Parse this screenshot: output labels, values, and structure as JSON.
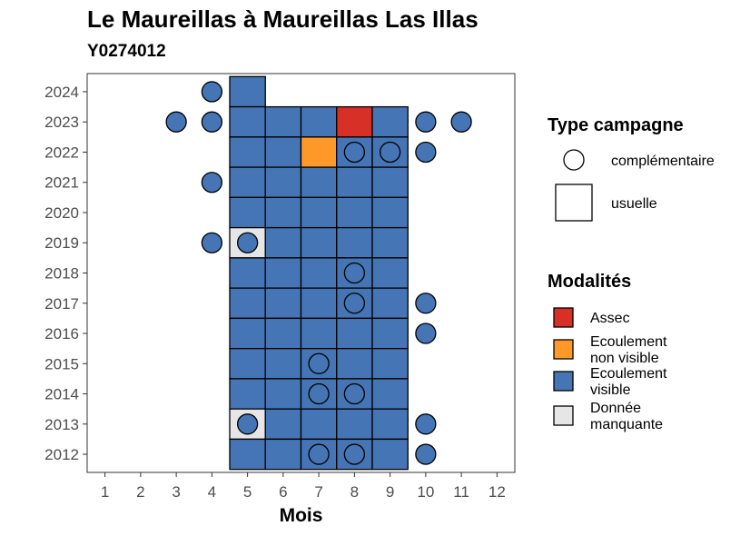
{
  "chart_data": {
    "type": "heatmap",
    "title": "Le Maureillas à Maureillas Las Illas",
    "subtitle": "Y0274012",
    "xlabel": "Mois",
    "ylabel": "",
    "x_ticks": [
      1,
      2,
      3,
      4,
      5,
      6,
      7,
      8,
      9,
      10,
      11,
      12
    ],
    "y_ticks": [
      2012,
      2013,
      2014,
      2015,
      2016,
      2017,
      2018,
      2019,
      2020,
      2021,
      2022,
      2023,
      2024
    ],
    "xlim": [
      0.5,
      12.5
    ],
    "ylim": [
      2011.4,
      2024.6
    ],
    "grid": false,
    "legend_position": "right",
    "legend_type": {
      "title": "Type campagne",
      "entries": [
        {
          "label": "complémentaire",
          "shape": "circle"
        },
        {
          "label": "usuelle",
          "shape": "square"
        }
      ]
    },
    "legend_modalites": {
      "title": "Modalités",
      "entries": [
        {
          "key": "assec",
          "label_lines": [
            "Assec"
          ],
          "color": "#d73027"
        },
        {
          "key": "ecoulement_non_visible",
          "label_lines": [
            "Ecoulement",
            "non visible"
          ],
          "color": "#fe9929"
        },
        {
          "key": "ecoulement_visible",
          "label_lines": [
            "Ecoulement",
            "visible"
          ],
          "color": "#4575b4"
        },
        {
          "key": "donnee_manquante",
          "label_lines": [
            "Donnée",
            "manquante"
          ],
          "color": "#e6e6e6"
        }
      ]
    },
    "squares": [
      {
        "year": 2024,
        "month": 5,
        "status": "ecoulement_visible"
      },
      {
        "year": 2023,
        "month": 5,
        "status": "ecoulement_visible"
      },
      {
        "year": 2023,
        "month": 6,
        "status": "ecoulement_visible"
      },
      {
        "year": 2023,
        "month": 7,
        "status": "ecoulement_visible"
      },
      {
        "year": 2023,
        "month": 8,
        "status": "assec"
      },
      {
        "year": 2023,
        "month": 9,
        "status": "ecoulement_visible"
      },
      {
        "year": 2022,
        "month": 5,
        "status": "ecoulement_visible"
      },
      {
        "year": 2022,
        "month": 6,
        "status": "ecoulement_visible"
      },
      {
        "year": 2022,
        "month": 7,
        "status": "ecoulement_non_visible"
      },
      {
        "year": 2022,
        "month": 8,
        "status": "ecoulement_visible"
      },
      {
        "year": 2022,
        "month": 9,
        "status": "ecoulement_visible"
      },
      {
        "year": 2021,
        "month": 5,
        "status": "ecoulement_visible"
      },
      {
        "year": 2021,
        "month": 6,
        "status": "ecoulement_visible"
      },
      {
        "year": 2021,
        "month": 7,
        "status": "ecoulement_visible"
      },
      {
        "year": 2021,
        "month": 8,
        "status": "ecoulement_visible"
      },
      {
        "year": 2021,
        "month": 9,
        "status": "ecoulement_visible"
      },
      {
        "year": 2020,
        "month": 5,
        "status": "ecoulement_visible"
      },
      {
        "year": 2020,
        "month": 6,
        "status": "ecoulement_visible"
      },
      {
        "year": 2020,
        "month": 7,
        "status": "ecoulement_visible"
      },
      {
        "year": 2020,
        "month": 8,
        "status": "ecoulement_visible"
      },
      {
        "year": 2020,
        "month": 9,
        "status": "ecoulement_visible"
      },
      {
        "year": 2019,
        "month": 5,
        "status": "donnee_manquante"
      },
      {
        "year": 2019,
        "month": 6,
        "status": "ecoulement_visible"
      },
      {
        "year": 2019,
        "month": 7,
        "status": "ecoulement_visible"
      },
      {
        "year": 2019,
        "month": 8,
        "status": "ecoulement_visible"
      },
      {
        "year": 2019,
        "month": 9,
        "status": "ecoulement_visible"
      },
      {
        "year": 2018,
        "month": 5,
        "status": "ecoulement_visible"
      },
      {
        "year": 2018,
        "month": 6,
        "status": "ecoulement_visible"
      },
      {
        "year": 2018,
        "month": 7,
        "status": "ecoulement_visible"
      },
      {
        "year": 2018,
        "month": 8,
        "status": "ecoulement_visible"
      },
      {
        "year": 2018,
        "month": 9,
        "status": "ecoulement_visible"
      },
      {
        "year": 2017,
        "month": 5,
        "status": "ecoulement_visible"
      },
      {
        "year": 2017,
        "month": 6,
        "status": "ecoulement_visible"
      },
      {
        "year": 2017,
        "month": 7,
        "status": "ecoulement_visible"
      },
      {
        "year": 2017,
        "month": 8,
        "status": "ecoulement_visible"
      },
      {
        "year": 2017,
        "month": 9,
        "status": "ecoulement_visible"
      },
      {
        "year": 2016,
        "month": 5,
        "status": "ecoulement_visible"
      },
      {
        "year": 2016,
        "month": 6,
        "status": "ecoulement_visible"
      },
      {
        "year": 2016,
        "month": 7,
        "status": "ecoulement_visible"
      },
      {
        "year": 2016,
        "month": 8,
        "status": "ecoulement_visible"
      },
      {
        "year": 2016,
        "month": 9,
        "status": "ecoulement_visible"
      },
      {
        "year": 2015,
        "month": 5,
        "status": "ecoulement_visible"
      },
      {
        "year": 2015,
        "month": 6,
        "status": "ecoulement_visible"
      },
      {
        "year": 2015,
        "month": 7,
        "status": "ecoulement_visible"
      },
      {
        "year": 2015,
        "month": 8,
        "status": "ecoulement_visible"
      },
      {
        "year": 2015,
        "month": 9,
        "status": "ecoulement_visible"
      },
      {
        "year": 2014,
        "month": 5,
        "status": "ecoulement_visible"
      },
      {
        "year": 2014,
        "month": 6,
        "status": "ecoulement_visible"
      },
      {
        "year": 2014,
        "month": 7,
        "status": "ecoulement_visible"
      },
      {
        "year": 2014,
        "month": 8,
        "status": "ecoulement_visible"
      },
      {
        "year": 2014,
        "month": 9,
        "status": "ecoulement_visible"
      },
      {
        "year": 2013,
        "month": 5,
        "status": "donnee_manquante"
      },
      {
        "year": 2013,
        "month": 6,
        "status": "ecoulement_visible"
      },
      {
        "year": 2013,
        "month": 7,
        "status": "ecoulement_visible"
      },
      {
        "year": 2013,
        "month": 8,
        "status": "ecoulement_visible"
      },
      {
        "year": 2013,
        "month": 9,
        "status": "ecoulement_visible"
      },
      {
        "year": 2012,
        "month": 5,
        "status": "ecoulement_visible"
      },
      {
        "year": 2012,
        "month": 6,
        "status": "ecoulement_visible"
      },
      {
        "year": 2012,
        "month": 7,
        "status": "ecoulement_visible"
      },
      {
        "year": 2012,
        "month": 8,
        "status": "ecoulement_visible"
      },
      {
        "year": 2012,
        "month": 9,
        "status": "ecoulement_visible"
      }
    ],
    "circles": [
      {
        "year": 2024,
        "month": 4,
        "status": "ecoulement_visible"
      },
      {
        "year": 2023,
        "month": 3,
        "status": "ecoulement_visible"
      },
      {
        "year": 2023,
        "month": 4,
        "status": "ecoulement_visible"
      },
      {
        "year": 2023,
        "month": 10,
        "status": "ecoulement_visible"
      },
      {
        "year": 2023,
        "month": 11,
        "status": "ecoulement_visible"
      },
      {
        "year": 2022,
        "month": 8,
        "status": "ecoulement_visible"
      },
      {
        "year": 2022,
        "month": 9,
        "status": "ecoulement_visible"
      },
      {
        "year": 2022,
        "month": 10,
        "status": "ecoulement_visible"
      },
      {
        "year": 2021,
        "month": 4,
        "status": "ecoulement_visible"
      },
      {
        "year": 2019,
        "month": 4,
        "status": "ecoulement_visible"
      },
      {
        "year": 2019,
        "month": 5,
        "status": "ecoulement_visible"
      },
      {
        "year": 2018,
        "month": 8,
        "status": "ecoulement_visible"
      },
      {
        "year": 2017,
        "month": 8,
        "status": "ecoulement_visible"
      },
      {
        "year": 2017,
        "month": 10,
        "status": "ecoulement_visible"
      },
      {
        "year": 2016,
        "month": 10,
        "status": "ecoulement_visible"
      },
      {
        "year": 2015,
        "month": 7,
        "status": "ecoulement_visible"
      },
      {
        "year": 2014,
        "month": 7,
        "status": "ecoulement_visible"
      },
      {
        "year": 2014,
        "month": 8,
        "status": "ecoulement_visible"
      },
      {
        "year": 2013,
        "month": 5,
        "status": "ecoulement_visible"
      },
      {
        "year": 2013,
        "month": 10,
        "status": "ecoulement_visible"
      },
      {
        "year": 2012,
        "month": 7,
        "status": "ecoulement_visible"
      },
      {
        "year": 2012,
        "month": 8,
        "status": "ecoulement_visible"
      },
      {
        "year": 2012,
        "month": 10,
        "status": "ecoulement_visible"
      }
    ]
  }
}
